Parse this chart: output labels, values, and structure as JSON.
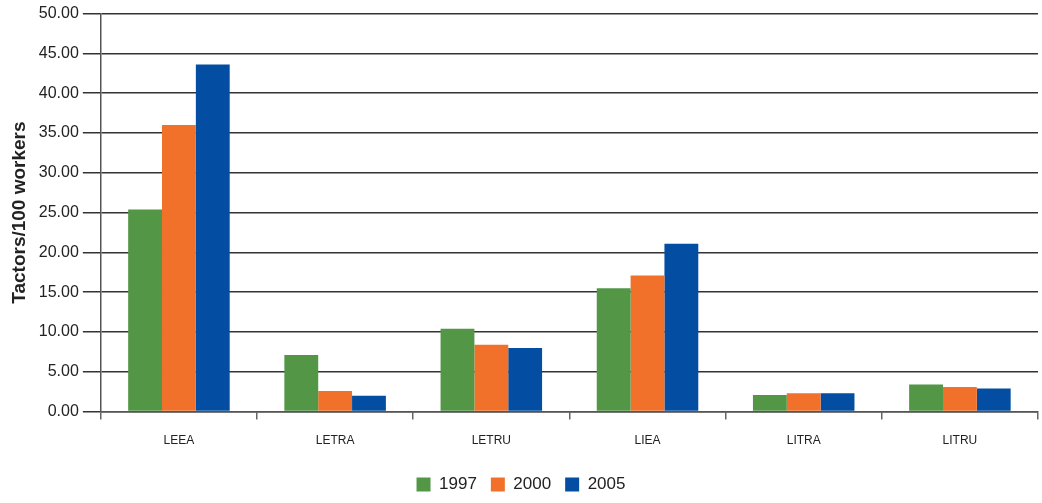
{
  "chart_data": {
    "type": "bar",
    "ylabel": "Tactors/100 workers",
    "categories": [
      "LEEA",
      "LETRA",
      "LETRU",
      "LIEA",
      "LITRA",
      "LITRU"
    ],
    "series": [
      {
        "name": "1997",
        "color": "#529646",
        "values": [
          25.4,
          7.1,
          10.4,
          15.5,
          2.1,
          3.4
        ]
      },
      {
        "name": "2000",
        "color": "#f1712a",
        "values": [
          36.0,
          2.6,
          8.4,
          17.1,
          2.3,
          3.1
        ]
      },
      {
        "name": "2005",
        "color": "#034ea2",
        "values": [
          43.6,
          2.0,
          8.0,
          21.1,
          2.3,
          2.9
        ]
      }
    ],
    "ylim": [
      0,
      50
    ],
    "yticks": [
      {
        "value": 0,
        "label": "0.00"
      },
      {
        "value": 5,
        "label": "5.00"
      },
      {
        "value": 10,
        "label": "10.00"
      },
      {
        "value": 15,
        "label": "15.00"
      },
      {
        "value": 20,
        "label": "20.00"
      },
      {
        "value": 25,
        "label": "25.00"
      },
      {
        "value": 30,
        "label": "30.00"
      },
      {
        "value": 35,
        "label": "35.00"
      },
      {
        "value": 40,
        "label": "40.00"
      },
      {
        "value": 45,
        "label": "45.00"
      },
      {
        "value": 50,
        "label": "50.00"
      }
    ],
    "grid": "y",
    "legend": "bottom"
  }
}
